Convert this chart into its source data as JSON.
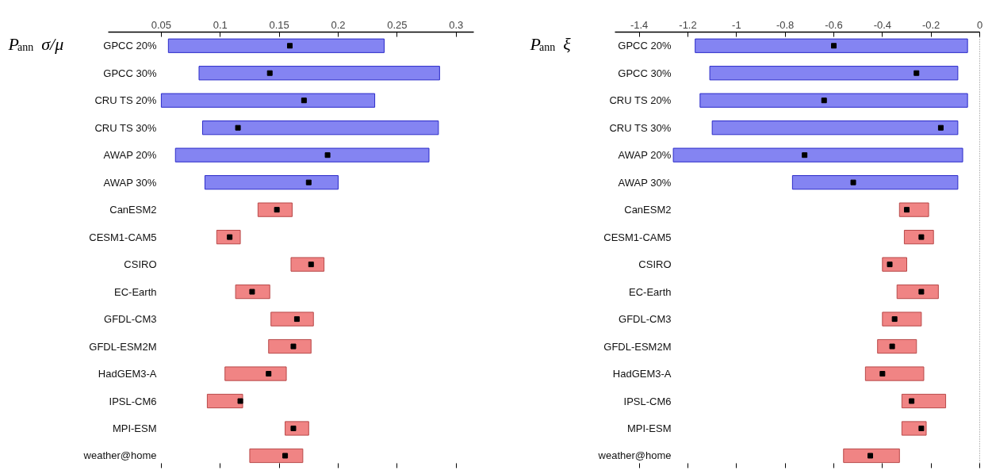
{
  "chart_data": [
    {
      "type": "bar",
      "orientation": "horizontal",
      "title": "P$_{ann}$ σ/μ",
      "categories": [
        "GPCC 20%",
        "GPCC 30%",
        "CRU TS 20%",
        "CRU TS 30%",
        "AWAP 20%",
        "AWAP 30%",
        "CanESM2",
        "CESM1-CAM5",
        "CSIRO",
        "EC-Earth",
        "GFDL-CM3",
        "GFDL-ESM2M",
        "HadGEM3-A",
        "IPSL-CM6",
        "MPI-ESM",
        "weather@home"
      ],
      "series": [
        {
          "type": "bar",
          "base": [
            0.056,
            0.082,
            0.05,
            0.085,
            0.062,
            0.087,
            0.132,
            0.097,
            0.16,
            0.113,
            0.143,
            0.141,
            0.104,
            0.089,
            0.155,
            0.125
          ],
          "values": [
            0.183,
            0.204,
            0.181,
            0.2,
            0.215,
            0.113,
            0.029,
            0.02,
            0.028,
            0.029,
            0.036,
            0.036,
            0.052,
            0.03,
            0.02,
            0.045
          ],
          "colors": [
            "#8484f2",
            "#8484f2",
            "#8484f2",
            "#8484f2",
            "#8484f2",
            "#8484f2",
            "#f08484",
            "#f08484",
            "#f08484",
            "#f08484",
            "#f08484",
            "#f08484",
            "#f08484",
            "#f08484",
            "#f08484",
            "#f08484"
          ]
        },
        {
          "type": "scatter",
          "color": "#000000",
          "marker": "square",
          "x": [
            "GPCC 20%",
            "GPCC 30%",
            "CRU TS 20%",
            "CRU TS 30%",
            "AWAP 20%",
            "AWAP 30%",
            "CanESM2",
            "CESM1-CAM5",
            "CSIRO",
            "EC-Earth",
            "GFDL-CM3",
            "GFDL-ESM2M",
            "HadGEM3-A",
            "IPSL-CM6",
            "MPI-ESM",
            "weather@home"
          ],
          "values": [
            0.159,
            0.142,
            0.171,
            0.115,
            0.191,
            0.175,
            0.148,
            0.108,
            0.177,
            0.127,
            0.165,
            0.162,
            0.141,
            0.117,
            0.162,
            0.155
          ]
        }
      ],
      "xlim": [
        0.005,
        0.315
      ],
      "xticks": [
        0.05,
        0.1,
        0.15,
        0.2,
        0.25,
        0.3
      ],
      "tick_labels": "x",
      "grid": false
    },
    {
      "type": "bar",
      "orientation": "horizontal",
      "title": "P$_{ann}$ ξ",
      "categories": [
        "GPCC 20%",
        "GPCC 30%",
        "CRU TS 20%",
        "CRU TS 30%",
        "AWAP 20%",
        "AWAP 30%",
        "CanESM2",
        "CESM1-CAM5",
        "CSIRO",
        "EC-Earth",
        "GFDL-CM3",
        "GFDL-ESM2M",
        "HadGEM3-A",
        "IPSL-CM6",
        "MPI-ESM",
        "weather@home"
      ],
      "series": [
        {
          "type": "bar",
          "base": [
            -1.17,
            -1.11,
            -1.15,
            -1.1,
            -1.26,
            -0.77,
            -0.33,
            -0.31,
            -0.4,
            -0.34,
            -0.4,
            -0.42,
            -0.47,
            -0.32,
            -0.32,
            -0.56
          ],
          "values": [
            1.12,
            1.02,
            1.1,
            1.01,
            1.19,
            0.68,
            0.12,
            0.12,
            0.1,
            0.17,
            0.16,
            0.16,
            0.24,
            0.18,
            0.1,
            0.23
          ],
          "colors": [
            "#8484f2",
            "#8484f2",
            "#8484f2",
            "#8484f2",
            "#8484f2",
            "#8484f2",
            "#f08484",
            "#f08484",
            "#f08484",
            "#f08484",
            "#f08484",
            "#f08484",
            "#f08484",
            "#f08484",
            "#f08484",
            "#f08484"
          ]
        },
        {
          "type": "scatter",
          "color": "#000000",
          "marker": "square",
          "x": [
            "GPCC 20%",
            "GPCC 30%",
            "CRU TS 20%",
            "CRU TS 30%",
            "AWAP 20%",
            "AWAP 30%",
            "CanESM2",
            "CESM1-CAM5",
            "CSIRO",
            "EC-Earth",
            "GFDL-CM3",
            "GFDL-ESM2M",
            "HadGEM3-A",
            "IPSL-CM6",
            "MPI-ESM",
            "weather@home"
          ],
          "values": [
            -0.6,
            -0.26,
            -0.64,
            -0.16,
            -0.72,
            -0.52,
            -0.3,
            -0.24,
            -0.37,
            -0.24,
            -0.35,
            -0.36,
            -0.4,
            -0.28,
            -0.24,
            -0.45
          ]
        }
      ],
      "xlim": [
        -1.5,
        0
      ],
      "xticks": [
        -1.4,
        -1.2,
        -1,
        -0.8,
        -0.6,
        -0.4,
        -0.2,
        0
      ],
      "tick_labels": "x",
      "grid": false,
      "ref_lines": [
        {
          "axis": "x",
          "value": 0,
          "line_style": "dotted"
        }
      ]
    }
  ]
}
